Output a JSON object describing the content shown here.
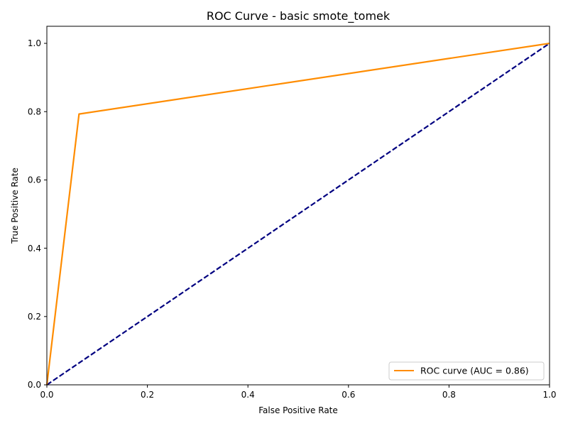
{
  "chart_data": {
    "type": "line",
    "title": "ROC Curve - basic smote_tomek",
    "xlabel": "False Positive Rate",
    "ylabel": "True Positive Rate",
    "xlim": [
      0.0,
      1.0
    ],
    "ylim": [
      0.0,
      1.05
    ],
    "xticks": [
      0.0,
      0.2,
      0.4,
      0.6,
      0.8,
      1.0
    ],
    "xtick_labels": [
      "0.0",
      "0.2",
      "0.4",
      "0.6",
      "0.8",
      "1.0"
    ],
    "yticks": [
      0.0,
      0.2,
      0.4,
      0.6,
      0.8,
      1.0
    ],
    "ytick_labels": [
      "0.0",
      "0.2",
      "0.4",
      "0.6",
      "0.8",
      "1.0"
    ],
    "grid": false,
    "legend_position": "lower-right",
    "series": [
      {
        "name": "ROC curve (AUC = 0.86)",
        "x": [
          0.0,
          0.064,
          1.0
        ],
        "y": [
          0.0,
          0.793,
          1.0
        ],
        "color": "#ff8c00",
        "style": "solid",
        "in_legend": true
      },
      {
        "x": [
          0.0,
          1.0
        ],
        "y": [
          0.0,
          1.0
        ],
        "color": "#000080",
        "style": "dashed",
        "in_legend": false
      }
    ]
  }
}
